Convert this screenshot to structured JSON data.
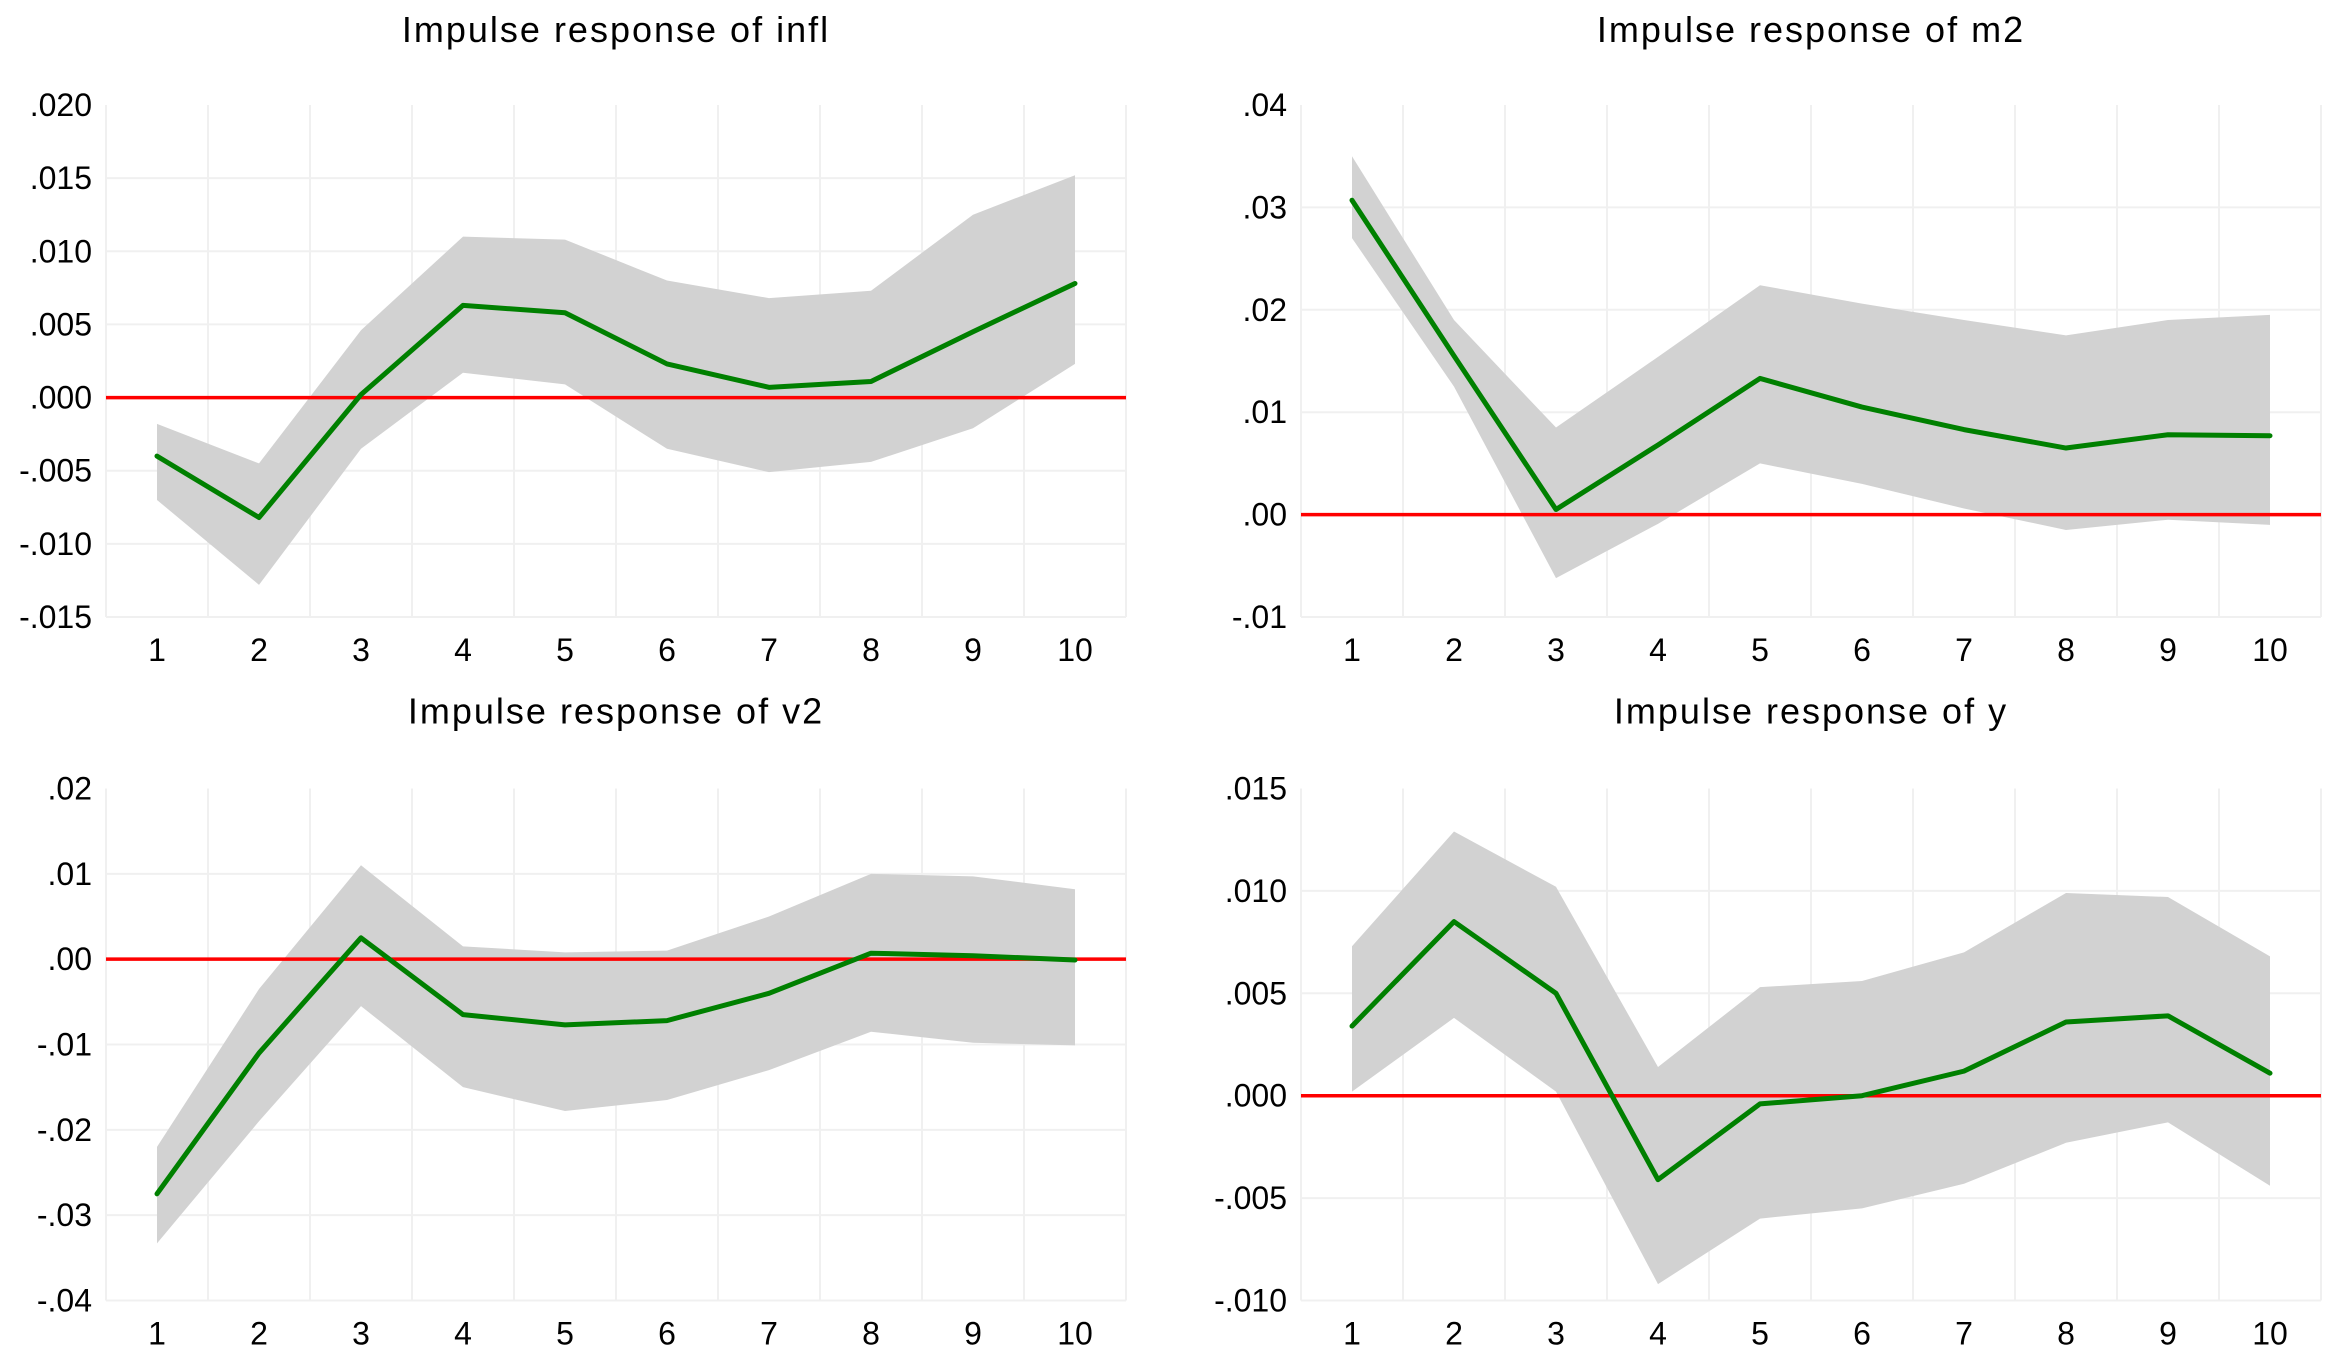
{
  "page": {
    "background": "#ffffff",
    "description_colors": {
      "response_line": "#008000",
      "confidence_band": "#d2d2d2",
      "zero_line": "#ff0000",
      "gridline": "#f0f0f0",
      "text": "#000000"
    }
  },
  "chart_data": [
    {
      "type": "line",
      "title": "Impulse response of infl",
      "x": [
        1,
        2,
        3,
        4,
        5,
        6,
        7,
        8,
        9,
        10
      ],
      "x_tick_labels": [
        "1",
        "2",
        "3",
        "4",
        "5",
        "6",
        "7",
        "8",
        "9",
        "10"
      ],
      "xlim": [
        0.5,
        10.5
      ],
      "ylim": [
        -0.015,
        0.02
      ],
      "xlabel": "",
      "ylabel": "",
      "legend": "none",
      "grid": {
        "color": "#f0f0f0",
        "vertical_at": [
          0.5,
          1.5,
          2.5,
          3.5,
          4.5,
          5.5,
          6.5,
          7.5,
          8.5,
          9.5,
          10.5
        ],
        "horizontal": "all-ticks-except-top"
      },
      "zero_line": {
        "value": 0,
        "color": "#ff0000"
      },
      "band": {
        "fill": "#d2d2d2"
      },
      "yticks": [
        {
          "value": 0.02,
          "label": ".020"
        },
        {
          "value": 0.015,
          "label": ".015"
        },
        {
          "value": 0.01,
          "label": ".010"
        },
        {
          "value": 0.005,
          "label": ".005"
        },
        {
          "value": 0.0,
          "label": ".000"
        },
        {
          "value": -0.005,
          "label": "-.005"
        },
        {
          "value": -0.01,
          "label": "-.010"
        },
        {
          "value": -0.015,
          "label": "-.015"
        }
      ],
      "series": [
        {
          "name": "impulse response",
          "color": "#008000",
          "values": [
            -0.004,
            -0.0082,
            0.0002,
            0.0063,
            0.0058,
            0.0023,
            0.0007,
            0.0011,
            0.0045,
            0.0078
          ]
        },
        {
          "name": "confidence upper",
          "color": "#d2d2d2",
          "values": [
            -0.0018,
            -0.0045,
            0.0046,
            0.011,
            0.0108,
            0.008,
            0.0068,
            0.0073,
            0.0125,
            0.0152
          ]
        },
        {
          "name": "confidence lower",
          "color": "#d2d2d2",
          "values": [
            -0.007,
            -0.0128,
            -0.0035,
            0.0017,
            0.0009,
            -0.0035,
            -0.0051,
            -0.0044,
            -0.0021,
            0.0023
          ]
        }
      ]
    },
    {
      "type": "line",
      "title": "Impulse response of m2",
      "x": [
        1,
        2,
        3,
        4,
        5,
        6,
        7,
        8,
        9,
        10
      ],
      "x_tick_labels": [
        "1",
        "2",
        "3",
        "4",
        "5",
        "6",
        "7",
        "8",
        "9",
        "10"
      ],
      "xlim": [
        0.5,
        10.5
      ],
      "ylim": [
        -0.01,
        0.04
      ],
      "xlabel": "",
      "ylabel": "",
      "legend": "none",
      "grid": {
        "color": "#f0f0f0",
        "vertical_at": [
          0.5,
          1.5,
          2.5,
          3.5,
          4.5,
          5.5,
          6.5,
          7.5,
          8.5,
          9.5,
          10.5
        ],
        "horizontal": "all-ticks-except-top"
      },
      "zero_line": {
        "value": 0,
        "color": "#ff0000"
      },
      "band": {
        "fill": "#d2d2d2"
      },
      "yticks": [
        {
          "value": 0.04,
          "label": ".04"
        },
        {
          "value": 0.03,
          "label": ".03"
        },
        {
          "value": 0.02,
          "label": ".02"
        },
        {
          "value": 0.01,
          "label": ".01"
        },
        {
          "value": 0.0,
          "label": ".00"
        },
        {
          "value": -0.01,
          "label": "-.01"
        }
      ],
      "series": [
        {
          "name": "impulse response",
          "color": "#008000",
          "values": [
            0.0307,
            0.0155,
            0.0005,
            0.0068,
            0.0133,
            0.0105,
            0.0083,
            0.0065,
            0.0078,
            0.0077
          ]
        },
        {
          "name": "confidence upper",
          "color": "#d2d2d2",
          "values": [
            0.035,
            0.019,
            0.0085,
            0.0154,
            0.0224,
            0.0206,
            0.019,
            0.0175,
            0.019,
            0.0195
          ]
        },
        {
          "name": "confidence lower",
          "color": "#d2d2d2",
          "values": [
            0.027,
            0.0125,
            -0.0062,
            -0.0009,
            0.005,
            0.003,
            0.0006,
            -0.0015,
            -0.0005,
            -0.001
          ]
        }
      ]
    },
    {
      "type": "line",
      "title": "Impulse response of v2",
      "x": [
        1,
        2,
        3,
        4,
        5,
        6,
        7,
        8,
        9,
        10
      ],
      "x_tick_labels": [
        "1",
        "2",
        "3",
        "4",
        "5",
        "6",
        "7",
        "8",
        "9",
        "10"
      ],
      "xlim": [
        0.5,
        10.5
      ],
      "ylim": [
        -0.04,
        0.02
      ],
      "xlabel": "",
      "ylabel": "",
      "legend": "none",
      "grid": {
        "color": "#f0f0f0",
        "vertical_at": [
          0.5,
          1.5,
          2.5,
          3.5,
          4.5,
          5.5,
          6.5,
          7.5,
          8.5,
          9.5,
          10.5
        ],
        "horizontal": "all-ticks-except-top"
      },
      "zero_line": {
        "value": 0,
        "color": "#ff0000"
      },
      "band": {
        "fill": "#d2d2d2"
      },
      "yticks": [
        {
          "value": 0.02,
          "label": ".02"
        },
        {
          "value": 0.01,
          "label": ".01"
        },
        {
          "value": 0.0,
          "label": ".00"
        },
        {
          "value": -0.01,
          "label": "-.01"
        },
        {
          "value": -0.02,
          "label": "-.02"
        },
        {
          "value": -0.03,
          "label": "-.03"
        },
        {
          "value": -0.04,
          "label": "-.04"
        }
      ],
      "series": [
        {
          "name": "impulse response",
          "color": "#008000",
          "values": [
            -0.0275,
            -0.011,
            0.0025,
            -0.0065,
            -0.0077,
            -0.0072,
            -0.004,
            0.0007,
            0.0004,
            -0.0001
          ]
        },
        {
          "name": "confidence upper",
          "color": "#d2d2d2",
          "values": [
            -0.022,
            -0.0035,
            0.011,
            0.0015,
            0.0008,
            0.001,
            0.005,
            0.01,
            0.0097,
            0.0082
          ]
        },
        {
          "name": "confidence lower",
          "color": "#d2d2d2",
          "values": [
            -0.0333,
            -0.019,
            -0.0055,
            -0.015,
            -0.0178,
            -0.0165,
            -0.013,
            -0.0085,
            -0.0098,
            -0.0101
          ]
        }
      ]
    },
    {
      "type": "line",
      "title": "Impulse response of y",
      "x": [
        1,
        2,
        3,
        4,
        5,
        6,
        7,
        8,
        9,
        10
      ],
      "x_tick_labels": [
        "1",
        "2",
        "3",
        "4",
        "5",
        "6",
        "7",
        "8",
        "9",
        "10"
      ],
      "xlim": [
        0.5,
        10.5
      ],
      "ylim": [
        -0.01,
        0.015
      ],
      "xlabel": "",
      "ylabel": "",
      "legend": "none",
      "grid": {
        "color": "#f0f0f0",
        "vertical_at": [
          0.5,
          1.5,
          2.5,
          3.5,
          4.5,
          5.5,
          6.5,
          7.5,
          8.5,
          9.5,
          10.5
        ],
        "horizontal": "all-ticks-except-top"
      },
      "zero_line": {
        "value": 0,
        "color": "#ff0000"
      },
      "band": {
        "fill": "#d2d2d2"
      },
      "yticks": [
        {
          "value": 0.015,
          "label": ".015"
        },
        {
          "value": 0.01,
          "label": ".010"
        },
        {
          "value": 0.005,
          "label": ".005"
        },
        {
          "value": 0.0,
          "label": ".000"
        },
        {
          "value": -0.005,
          "label": "-.005"
        },
        {
          "value": -0.01,
          "label": "-.010"
        }
      ],
      "series": [
        {
          "name": "impulse response",
          "color": "#008000",
          "values": [
            0.0034,
            0.0085,
            0.005,
            -0.0041,
            -0.0004,
            0.0,
            0.0012,
            0.0036,
            0.0039,
            0.0011
          ]
        },
        {
          "name": "confidence upper",
          "color": "#d2d2d2",
          "values": [
            0.0073,
            0.0129,
            0.0102,
            0.0014,
            0.0053,
            0.0056,
            0.007,
            0.0099,
            0.0097,
            0.0068
          ]
        },
        {
          "name": "confidence lower",
          "color": "#d2d2d2",
          "values": [
            0.0002,
            0.0038,
            0.0002,
            -0.0092,
            -0.006,
            -0.0055,
            -0.0043,
            -0.0023,
            -0.0013,
            -0.0044
          ]
        }
      ]
    }
  ]
}
